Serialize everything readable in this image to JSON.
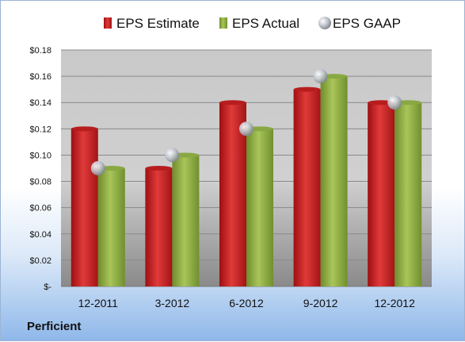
{
  "company": "Perficient",
  "chart_data": {
    "type": "bar",
    "categories": [
      "12-2011",
      "3-2012",
      "6-2012",
      "9-2012",
      "12-2012"
    ],
    "series": [
      {
        "name": "EPS Estimate",
        "values": [
          0.12,
          0.09,
          0.14,
          0.15,
          0.14
        ],
        "color": "#cc1f1f"
      },
      {
        "name": "EPS Actual",
        "values": [
          0.09,
          0.1,
          0.12,
          0.16,
          0.14
        ],
        "color": "#8faf3e"
      },
      {
        "name": "EPS GAAP",
        "values": [
          0.09,
          0.1,
          0.12,
          0.16,
          0.14
        ],
        "color": "#b0b6c0",
        "marker": "circle"
      }
    ],
    "y_ticks": [
      "$-",
      "$0.02",
      "$0.04",
      "$0.06",
      "$0.08",
      "$0.10",
      "$0.12",
      "$0.14",
      "$0.16",
      "$0.18"
    ],
    "ylim": [
      0,
      0.18
    ],
    "grid": true,
    "legend_position": "top"
  }
}
